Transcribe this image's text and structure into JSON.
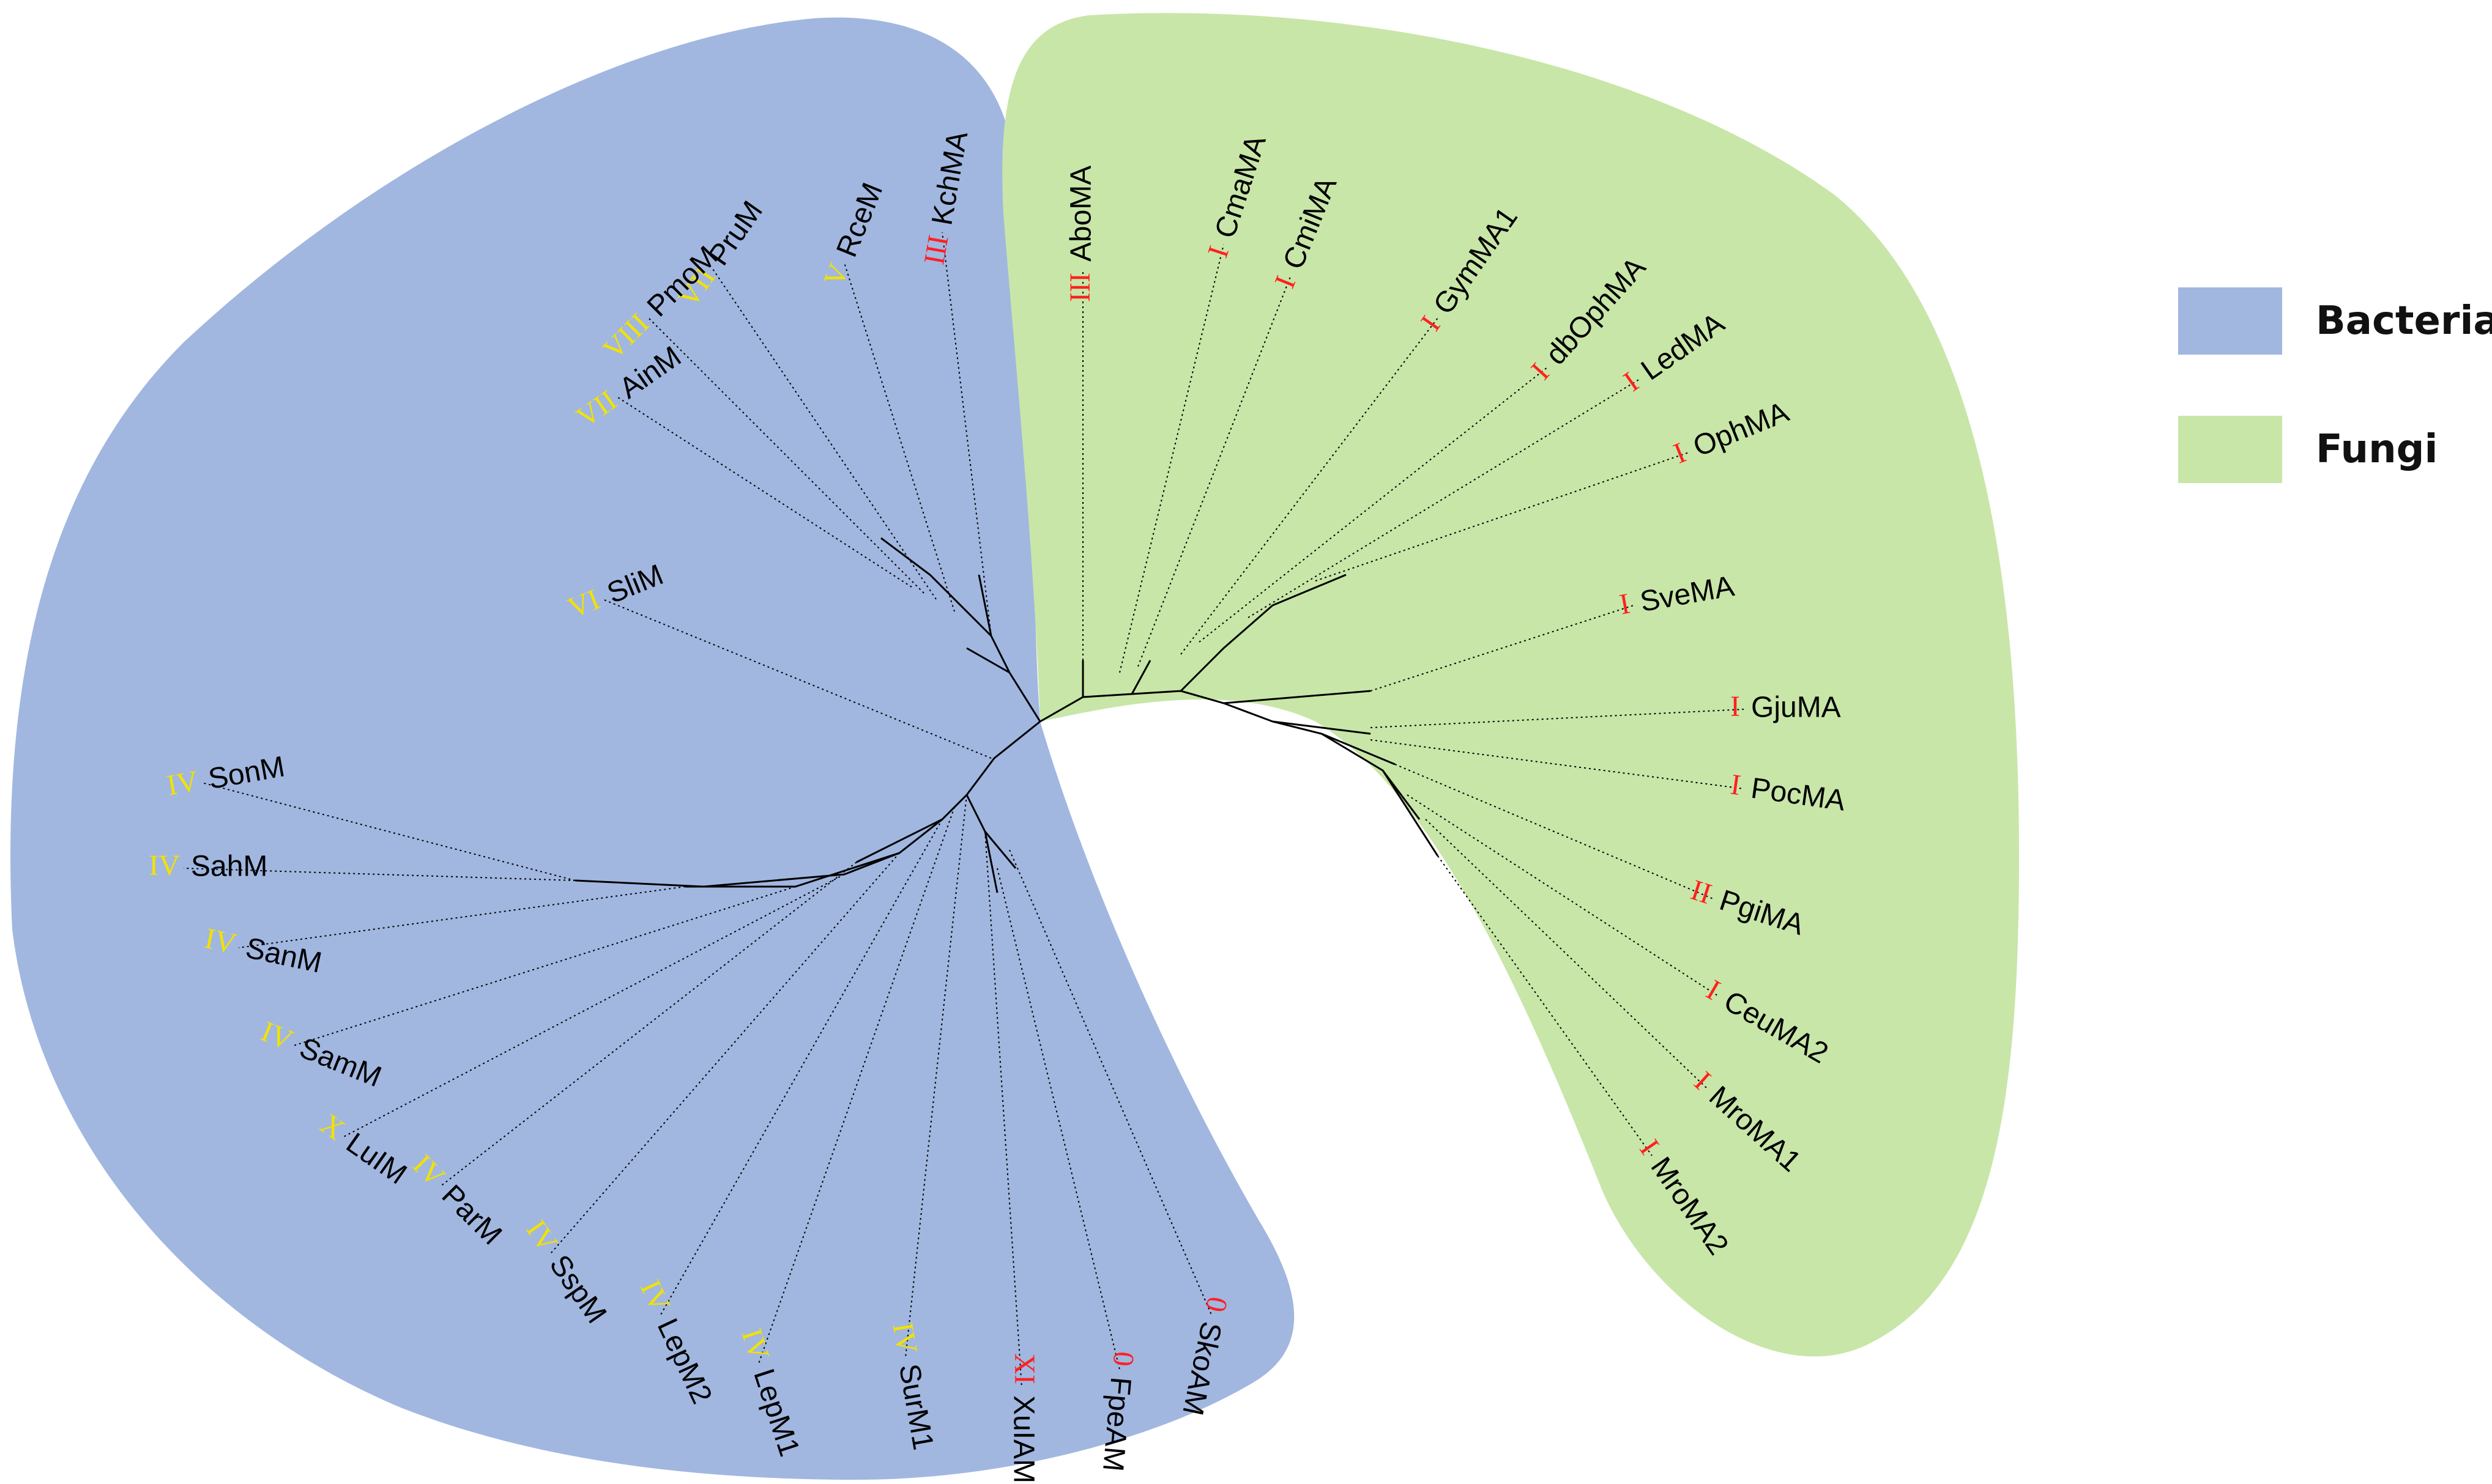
{
  "colors": {
    "bacteria": "#a1b7e0",
    "fungi": "#c8e6a8",
    "class_red": "#ff2020",
    "class_yellow": "#f2e200"
  },
  "legend": [
    {
      "label": "Bacteria",
      "color": "#a1b7e0"
    },
    {
      "label": "Fungi",
      "color": "#c8e6a8"
    }
  ],
  "bacteria_leaves": [
    {
      "name": "KchMA",
      "cls": "III",
      "cls_color": "red"
    },
    {
      "name": "RceM",
      "cls": "V",
      "cls_color": "yellow"
    },
    {
      "name": "PruM",
      "cls": "VII",
      "cls_color": "yellow"
    },
    {
      "name": "PmoM",
      "cls": "VIII",
      "cls_color": "yellow"
    },
    {
      "name": "AinM",
      "cls": "VII",
      "cls_color": "yellow"
    },
    {
      "name": "SliM",
      "cls": "VI",
      "cls_color": "yellow"
    },
    {
      "name": "SonM",
      "cls": "IV",
      "cls_color": "yellow"
    },
    {
      "name": "SahM",
      "cls": "IV",
      "cls_color": "yellow"
    },
    {
      "name": "SanM",
      "cls": "IV",
      "cls_color": "yellow"
    },
    {
      "name": "SamM",
      "cls": "IV",
      "cls_color": "yellow"
    },
    {
      "name": "LuIM",
      "cls": "X",
      "cls_color": "yellow"
    },
    {
      "name": "ParM",
      "cls": "IV",
      "cls_color": "yellow"
    },
    {
      "name": "SspM",
      "cls": "IV",
      "cls_color": "yellow"
    },
    {
      "name": "LepM2",
      "cls": "IV",
      "cls_color": "yellow"
    },
    {
      "name": "LepM1",
      "cls": "IV",
      "cls_color": "yellow"
    },
    {
      "name": "SurM1",
      "cls": "IV",
      "cls_color": "yellow"
    },
    {
      "name": "XuIAM",
      "cls": "XI",
      "cls_color": "red"
    },
    {
      "name": "FpeAM",
      "cls": "0",
      "cls_color": "red"
    },
    {
      "name": "SkoAM",
      "cls": "0",
      "cls_color": "red"
    }
  ],
  "fungi_leaves": [
    {
      "name": "AboMA",
      "cls": "III",
      "cls_color": "red"
    },
    {
      "name": "CmaMA",
      "cls": "I",
      "cls_color": "red"
    },
    {
      "name": "CmiMA",
      "cls": "I",
      "cls_color": "red"
    },
    {
      "name": "GymMA1",
      "cls": "I",
      "cls_color": "red"
    },
    {
      "name": "dbOphMA",
      "cls": "I",
      "cls_color": "red"
    },
    {
      "name": "LedMA",
      "cls": "I",
      "cls_color": "red"
    },
    {
      "name": "OphMA",
      "cls": "I",
      "cls_color": "red"
    },
    {
      "name": "SveMA",
      "cls": "I",
      "cls_color": "red"
    },
    {
      "name": "GjuMA",
      "cls": "I",
      "cls_color": "red"
    },
    {
      "name": "PocMA",
      "cls": "I",
      "cls_color": "red"
    },
    {
      "name": "PgiMA",
      "cls": "II",
      "cls_color": "red"
    },
    {
      "name": "CeuMA2",
      "cls": "I",
      "cls_color": "red"
    },
    {
      "name": "MroMA1",
      "cls": "I",
      "cls_color": "red"
    },
    {
      "name": "MroMA2",
      "cls": "I",
      "cls_color": "red"
    }
  ]
}
